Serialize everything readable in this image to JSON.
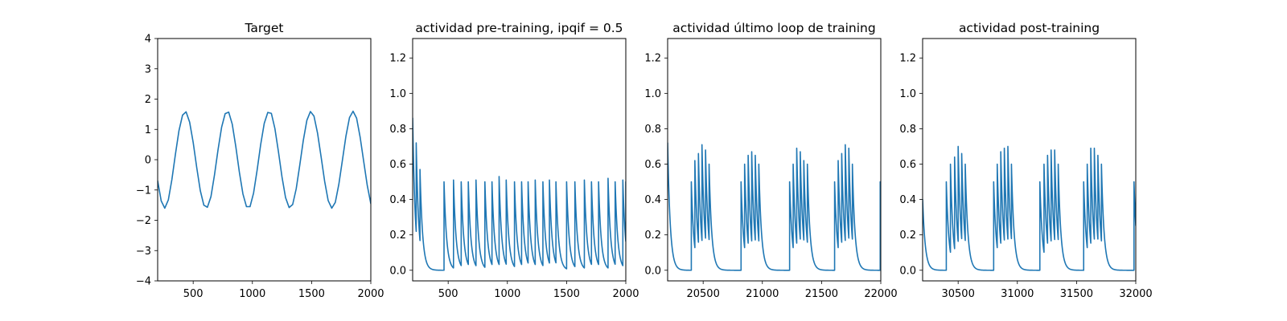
{
  "chart_data": [
    {
      "type": "line",
      "title": "Target",
      "xlabel": "",
      "ylabel": "",
      "xlim": [
        200,
        2000
      ],
      "ylim": [
        -4,
        4
      ],
      "xticks": [
        500,
        1000,
        1500,
        2000
      ],
      "yticks": [
        -4,
        -3,
        -2,
        -1,
        0,
        1,
        2,
        3,
        4
      ],
      "grid": false,
      "series": [
        {
          "color": "#1f77b4",
          "x": [
            200,
            230,
            260,
            290,
            320,
            350,
            380,
            410,
            440,
            470,
            500,
            530,
            560,
            590,
            620,
            650,
            680,
            710,
            740,
            770,
            800,
            830,
            860,
            890,
            920,
            950,
            980,
            1010,
            1040,
            1070,
            1100,
            1130,
            1160,
            1190,
            1220,
            1250,
            1280,
            1310,
            1340,
            1370,
            1400,
            1430,
            1460,
            1490,
            1520,
            1550,
            1580,
            1610,
            1640,
            1670,
            1700,
            1730,
            1760,
            1790,
            1820,
            1850,
            1880,
            1910,
            1940,
            1970,
            2000
          ],
          "y": [
            -0.7,
            -1.36,
            -1.6,
            -1.33,
            -0.66,
            0.18,
            0.96,
            1.47,
            1.58,
            1.24,
            0.57,
            -0.26,
            -1.02,
            -1.5,
            -1.57,
            -1.22,
            -0.5,
            0.33,
            1.07,
            1.52,
            1.57,
            1.17,
            0.43,
            -0.41,
            -1.13,
            -1.55,
            -1.55,
            -1.1,
            -0.34,
            0.5,
            1.2,
            1.56,
            1.53,
            1.03,
            0.26,
            -0.57,
            -1.25,
            -1.58,
            -1.48,
            -0.96,
            -0.18,
            0.64,
            1.3,
            1.59,
            1.44,
            0.88,
            0.1,
            -0.71,
            -1.35,
            -1.6,
            -1.41,
            -0.81,
            -0.02,
            0.78,
            1.39,
            1.6,
            1.37,
            0.74,
            -0.06,
            -0.85,
            -1.45
          ]
        }
      ]
    },
    {
      "type": "line",
      "title": "actividad pre-training, ipqif = 0.5",
      "xlabel": "",
      "ylabel": "",
      "xlim": [
        200,
        2000
      ],
      "ylim": [
        -0.06,
        1.31
      ],
      "xticks": [
        500,
        1000,
        1500,
        2000
      ],
      "yticks": [
        0.0,
        0.2,
        0.4,
        0.6,
        0.8,
        1.0,
        1.2
      ],
      "grid": false,
      "series": [
        {
          "color": "#1f77b4",
          "spikes": [
            [
              200,
              0.86
            ],
            [
              230,
              0.72
            ],
            [
              262,
              0.57
            ],
            [
              465,
              0.5
            ],
            [
              545,
              0.51
            ],
            [
              610,
              0.5
            ],
            [
              670,
              0.5
            ],
            [
              735,
              0.51
            ],
            [
              810,
              0.5
            ],
            [
              870,
              0.5
            ],
            [
              930,
              0.53
            ],
            [
              990,
              0.51
            ],
            [
              1060,
              0.5
            ],
            [
              1120,
              0.5
            ],
            [
              1175,
              0.5
            ],
            [
              1235,
              0.51
            ],
            [
              1300,
              0.5
            ],
            [
              1355,
              0.51
            ],
            [
              1410,
              0.5
            ],
            [
              1500,
              0.5
            ],
            [
              1570,
              0.5
            ],
            [
              1650,
              0.51
            ],
            [
              1710,
              0.5
            ],
            [
              1770,
              0.5
            ],
            [
              1850,
              0.52
            ],
            [
              1910,
              0.5
            ],
            [
              1975,
              0.51
            ],
            [
              2000,
              0.5
            ]
          ]
        }
      ]
    },
    {
      "type": "line",
      "title": "actividad último loop de training",
      "xlabel": "",
      "ylabel": "",
      "xlim": [
        20200,
        22000
      ],
      "ylim": [
        -0.06,
        1.31
      ],
      "xticks": [
        20500,
        21000,
        21500,
        22000
      ],
      "yticks": [
        0.0,
        0.2,
        0.4,
        0.6,
        0.8,
        1.0,
        1.2
      ],
      "grid": false,
      "series": [
        {
          "color": "#1f77b4",
          "spikes": [
            [
              20200,
              0.72
            ],
            [
              20400,
              0.5
            ],
            [
              20430,
              0.62
            ],
            [
              20460,
              0.66
            ],
            [
              20490,
              0.71
            ],
            [
              20520,
              0.68
            ],
            [
              20550,
              0.6
            ],
            [
              20820,
              0.5
            ],
            [
              20850,
              0.6
            ],
            [
              20880,
              0.65
            ],
            [
              20910,
              0.67
            ],
            [
              20940,
              0.65
            ],
            [
              20970,
              0.6
            ],
            [
              21230,
              0.5
            ],
            [
              21260,
              0.6
            ],
            [
              21290,
              0.69
            ],
            [
              21320,
              0.67
            ],
            [
              21350,
              0.62
            ],
            [
              21380,
              0.6
            ],
            [
              21610,
              0.5
            ],
            [
              21640,
              0.62
            ],
            [
              21670,
              0.66
            ],
            [
              21700,
              0.71
            ],
            [
              21730,
              0.69
            ],
            [
              21760,
              0.6
            ],
            [
              21995,
              0.5
            ]
          ]
        }
      ]
    },
    {
      "type": "line",
      "title": "actividad post-training",
      "xlabel": "",
      "ylabel": "",
      "xlim": [
        30200,
        32000
      ],
      "ylim": [
        -0.06,
        1.31
      ],
      "xticks": [
        30500,
        31000,
        31500,
        32000
      ],
      "yticks": [
        0.0,
        0.2,
        0.4,
        0.6,
        0.8,
        1.0,
        1.2
      ],
      "grid": false,
      "series": [
        {
          "color": "#1f77b4",
          "spikes": [
            [
              30200,
              0.4
            ],
            [
              30400,
              0.5
            ],
            [
              30435,
              0.6
            ],
            [
              30470,
              0.64
            ],
            [
              30500,
              0.7
            ],
            [
              30530,
              0.66
            ],
            [
              30560,
              0.6
            ],
            [
              30800,
              0.5
            ],
            [
              30830,
              0.6
            ],
            [
              30860,
              0.67
            ],
            [
              30890,
              0.69
            ],
            [
              30920,
              0.7
            ],
            [
              30950,
              0.6
            ],
            [
              31190,
              0.5
            ],
            [
              31225,
              0.6
            ],
            [
              31255,
              0.65
            ],
            [
              31285,
              0.68
            ],
            [
              31315,
              0.68
            ],
            [
              31345,
              0.6
            ],
            [
              31560,
              0.5
            ],
            [
              31590,
              0.6
            ],
            [
              31620,
              0.69
            ],
            [
              31650,
              0.69
            ],
            [
              31680,
              0.65
            ],
            [
              31710,
              0.6
            ],
            [
              31985,
              0.5
            ]
          ]
        }
      ]
    }
  ]
}
